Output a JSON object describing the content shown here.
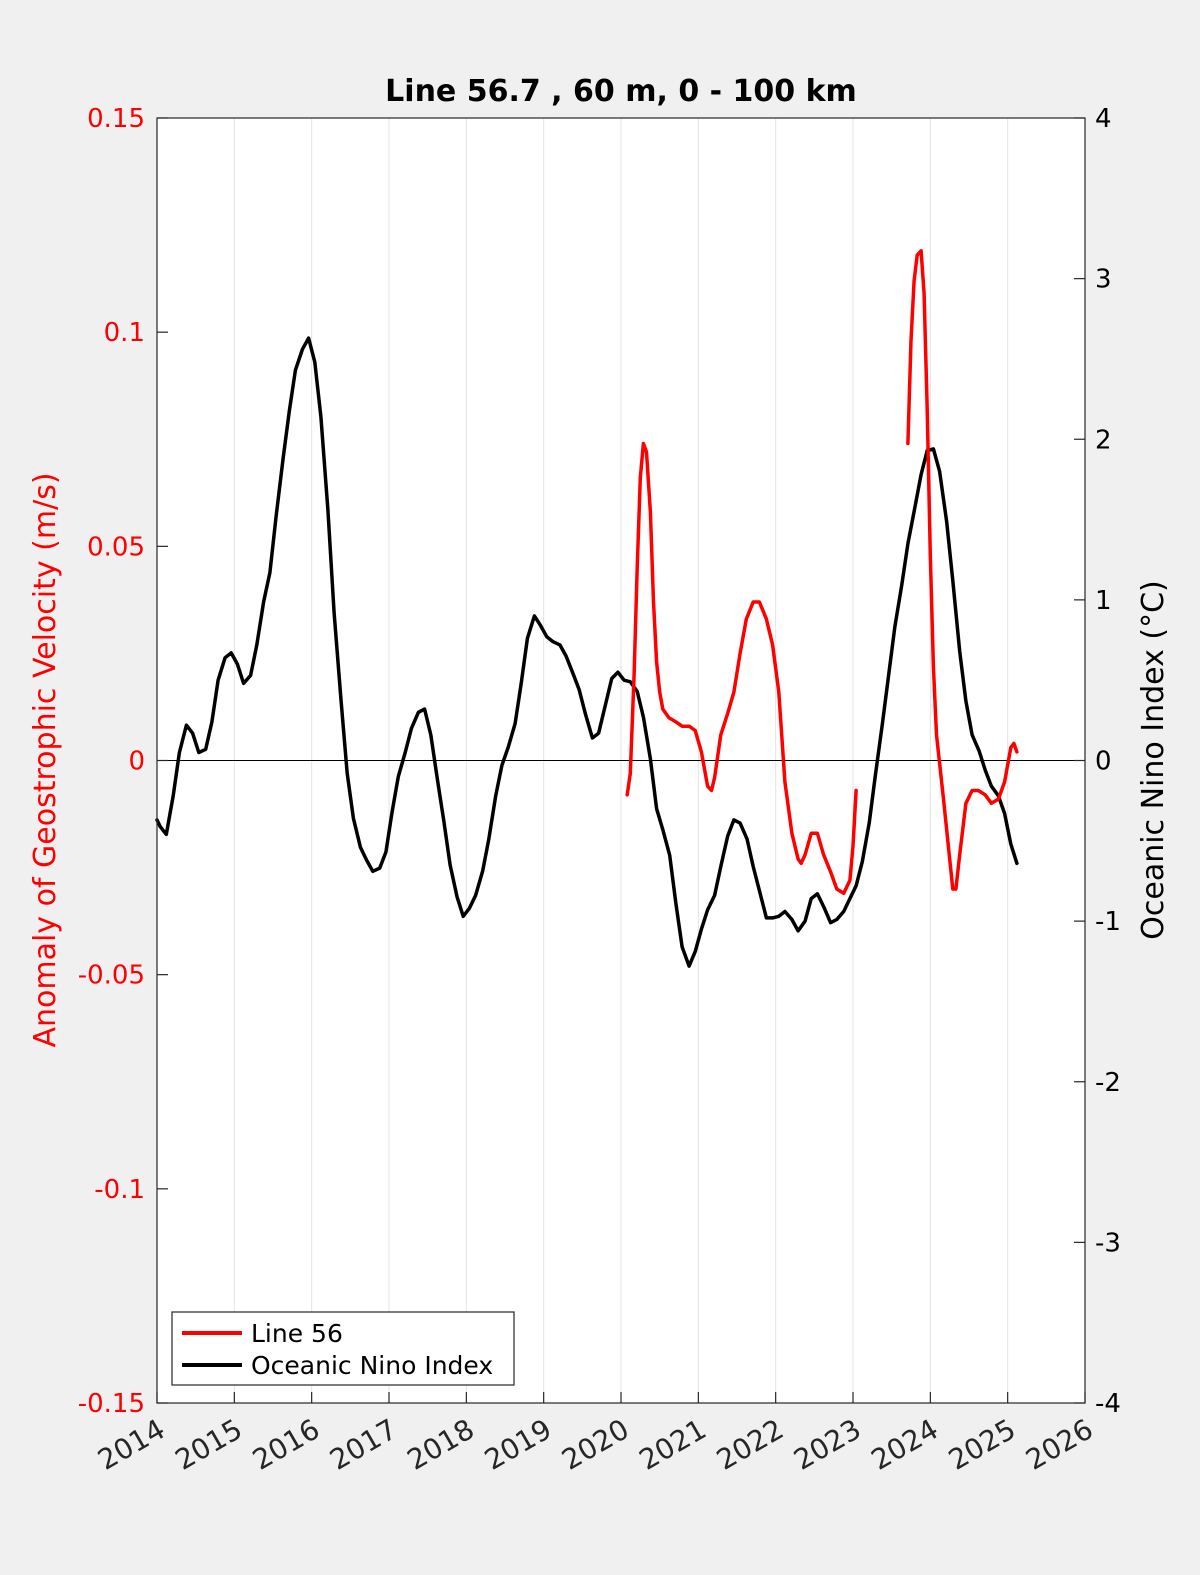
{
  "chart_data": {
    "type": "line",
    "title": "Line 56.7 , 60 m, 0 - 100 km",
    "xlabel": "",
    "xlim": [
      2014,
      2026
    ],
    "xticks": [
      "2014",
      "2015",
      "2016",
      "2017",
      "2018",
      "2019",
      "2020",
      "2021",
      "2022",
      "2023",
      "2024",
      "2025",
      "2026"
    ],
    "y_left": {
      "label": "Anomaly of Geostrophic Velocity (m/s)",
      "lim": [
        -0.15,
        0.15
      ],
      "ticks": [
        "0.15",
        "0.1",
        "0.05",
        "0",
        "-0.05",
        "-0.1",
        "-0.15"
      ],
      "color": "#ff0000"
    },
    "y_right": {
      "label": "Oceanic Nino Index (°C)",
      "lim": [
        -4,
        4
      ],
      "ticks": [
        "4",
        "3",
        "2",
        "1",
        "0",
        "-1",
        "-2",
        "-3",
        "-4"
      ],
      "color": "#000000"
    },
    "grid": "vertical",
    "legend": {
      "position": "bottom-left",
      "entries": [
        {
          "label": "Line 56",
          "color": "#ff0000"
        },
        {
          "label": "Oceanic Nino Index",
          "color": "#000000"
        }
      ]
    },
    "series": [
      {
        "name": "Line 56",
        "axis": "left",
        "color": "#ff0000",
        "segments": [
          [
            [
              2020.08,
              -0.008
            ],
            [
              2020.12,
              -0.003
            ],
            [
              2020.17,
              0.02
            ],
            [
              2020.21,
              0.045
            ],
            [
              2020.25,
              0.066
            ],
            [
              2020.29,
              0.074
            ],
            [
              2020.33,
              0.072
            ],
            [
              2020.38,
              0.058
            ],
            [
              2020.42,
              0.037
            ],
            [
              2020.46,
              0.023
            ],
            [
              2020.5,
              0.016
            ],
            [
              2020.54,
              0.012
            ],
            [
              2020.62,
              0.01
            ],
            [
              2020.71,
              0.009
            ],
            [
              2020.79,
              0.008
            ],
            [
              2020.88,
              0.008
            ],
            [
              2020.96,
              0.007
            ],
            [
              2021.04,
              0.002
            ],
            [
              2021.12,
              -0.006
            ],
            [
              2021.17,
              -0.007
            ],
            [
              2021.21,
              -0.004
            ],
            [
              2021.29,
              0.006
            ],
            [
              2021.38,
              0.011
            ],
            [
              2021.46,
              0.016
            ],
            [
              2021.54,
              0.025
            ],
            [
              2021.62,
              0.033
            ],
            [
              2021.71,
              0.037
            ],
            [
              2021.79,
              0.037
            ],
            [
              2021.88,
              0.033
            ],
            [
              2021.96,
              0.027
            ],
            [
              2022.04,
              0.016
            ],
            [
              2022.12,
              -0.005
            ],
            [
              2022.21,
              -0.017
            ],
            [
              2022.29,
              -0.023
            ],
            [
              2022.33,
              -0.024
            ],
            [
              2022.38,
              -0.022
            ],
            [
              2022.46,
              -0.017
            ],
            [
              2022.54,
              -0.017
            ],
            [
              2022.62,
              -0.022
            ],
            [
              2022.71,
              -0.026
            ],
            [
              2022.79,
              -0.03
            ],
            [
              2022.88,
              -0.031
            ],
            [
              2022.96,
              -0.028
            ],
            [
              2023.0,
              -0.02
            ],
            [
              2023.04,
              -0.007
            ]
          ],
          [
            [
              2023.71,
              0.074
            ],
            [
              2023.75,
              0.098
            ],
            [
              2023.79,
              0.112
            ],
            [
              2023.83,
              0.118
            ],
            [
              2023.88,
              0.119
            ],
            [
              2023.92,
              0.109
            ],
            [
              2023.96,
              0.082
            ],
            [
              2024.0,
              0.048
            ],
            [
              2024.04,
              0.022
            ],
            [
              2024.08,
              0.006
            ],
            [
              2024.17,
              -0.009
            ],
            [
              2024.25,
              -0.023
            ],
            [
              2024.29,
              -0.03
            ],
            [
              2024.33,
              -0.03
            ],
            [
              2024.38,
              -0.022
            ],
            [
              2024.46,
              -0.01
            ],
            [
              2024.54,
              -0.007
            ],
            [
              2024.62,
              -0.007
            ],
            [
              2024.71,
              -0.008
            ],
            [
              2024.79,
              -0.01
            ],
            [
              2024.88,
              -0.009
            ],
            [
              2024.96,
              -0.005
            ],
            [
              2025.04,
              0.003
            ],
            [
              2025.08,
              0.004
            ],
            [
              2025.12,
              0.002
            ]
          ]
        ]
      },
      {
        "name": "Oceanic Nino Index",
        "axis": "right",
        "color": "#000000",
        "segments": [
          [
            [
              2014.0,
              -0.37
            ],
            [
              2014.04,
              -0.41
            ],
            [
              2014.12,
              -0.46
            ],
            [
              2014.21,
              -0.22
            ],
            [
              2014.29,
              0.05
            ],
            [
              2014.38,
              0.22
            ],
            [
              2014.46,
              0.17
            ],
            [
              2014.54,
              0.05
            ],
            [
              2014.63,
              0.07
            ],
            [
              2014.71,
              0.24
            ],
            [
              2014.79,
              0.5
            ],
            [
              2014.88,
              0.64
            ],
            [
              2014.96,
              0.67
            ],
            [
              2015.04,
              0.6
            ],
            [
              2015.12,
              0.48
            ],
            [
              2015.21,
              0.53
            ],
            [
              2015.29,
              0.72
            ],
            [
              2015.38,
              0.99
            ],
            [
              2015.46,
              1.17
            ],
            [
              2015.54,
              1.52
            ],
            [
              2015.63,
              1.88
            ],
            [
              2015.71,
              2.17
            ],
            [
              2015.79,
              2.43
            ],
            [
              2015.88,
              2.56
            ],
            [
              2015.96,
              2.63
            ],
            [
              2016.04,
              2.48
            ],
            [
              2016.12,
              2.14
            ],
            [
              2016.21,
              1.56
            ],
            [
              2016.29,
              0.92
            ],
            [
              2016.38,
              0.37
            ],
            [
              2016.46,
              -0.08
            ],
            [
              2016.54,
              -0.36
            ],
            [
              2016.63,
              -0.54
            ],
            [
              2016.71,
              -0.62
            ],
            [
              2016.79,
              -0.69
            ],
            [
              2016.88,
              -0.67
            ],
            [
              2016.96,
              -0.57
            ],
            [
              2017.04,
              -0.32
            ],
            [
              2017.12,
              -0.1
            ],
            [
              2017.21,
              0.05
            ],
            [
              2017.29,
              0.2
            ],
            [
              2017.38,
              0.3
            ],
            [
              2017.46,
              0.32
            ],
            [
              2017.54,
              0.16
            ],
            [
              2017.63,
              -0.13
            ],
            [
              2017.71,
              -0.38
            ],
            [
              2017.79,
              -0.65
            ],
            [
              2017.88,
              -0.85
            ],
            [
              2017.96,
              -0.97
            ],
            [
              2018.04,
              -0.92
            ],
            [
              2018.12,
              -0.84
            ],
            [
              2018.21,
              -0.69
            ],
            [
              2018.29,
              -0.49
            ],
            [
              2018.38,
              -0.22
            ],
            [
              2018.46,
              -0.03
            ],
            [
              2018.54,
              0.08
            ],
            [
              2018.63,
              0.23
            ],
            [
              2018.71,
              0.48
            ],
            [
              2018.79,
              0.76
            ],
            [
              2018.88,
              0.9
            ],
            [
              2018.96,
              0.84
            ],
            [
              2019.04,
              0.77
            ],
            [
              2019.12,
              0.74
            ],
            [
              2019.21,
              0.72
            ],
            [
              2019.29,
              0.65
            ],
            [
              2019.38,
              0.54
            ],
            [
              2019.46,
              0.44
            ],
            [
              2019.54,
              0.29
            ],
            [
              2019.63,
              0.14
            ],
            [
              2019.71,
              0.17
            ],
            [
              2019.79,
              0.33
            ],
            [
              2019.88,
              0.51
            ],
            [
              2019.96,
              0.55
            ],
            [
              2020.04,
              0.5
            ],
            [
              2020.12,
              0.49
            ],
            [
              2020.21,
              0.43
            ],
            [
              2020.29,
              0.27
            ],
            [
              2020.38,
              0.01
            ],
            [
              2020.46,
              -0.3
            ],
            [
              2020.54,
              -0.43
            ],
            [
              2020.63,
              -0.59
            ],
            [
              2020.71,
              -0.89
            ],
            [
              2020.79,
              -1.16
            ],
            [
              2020.88,
              -1.28
            ],
            [
              2020.96,
              -1.19
            ],
            [
              2021.04,
              -1.05
            ],
            [
              2021.12,
              -0.93
            ],
            [
              2021.21,
              -0.84
            ],
            [
              2021.29,
              -0.66
            ],
            [
              2021.38,
              -0.47
            ],
            [
              2021.46,
              -0.37
            ],
            [
              2021.54,
              -0.39
            ],
            [
              2021.63,
              -0.49
            ],
            [
              2021.71,
              -0.66
            ],
            [
              2021.79,
              -0.81
            ],
            [
              2021.88,
              -0.98
            ],
            [
              2021.96,
              -0.98
            ],
            [
              2022.04,
              -0.97
            ],
            [
              2022.12,
              -0.94
            ],
            [
              2022.21,
              -0.99
            ],
            [
              2022.29,
              -1.06
            ],
            [
              2022.38,
              -1.0
            ],
            [
              2022.46,
              -0.86
            ],
            [
              2022.54,
              -0.83
            ],
            [
              2022.63,
              -0.92
            ],
            [
              2022.71,
              -1.01
            ],
            [
              2022.79,
              -0.99
            ],
            [
              2022.88,
              -0.94
            ],
            [
              2022.96,
              -0.86
            ],
            [
              2023.04,
              -0.78
            ],
            [
              2023.12,
              -0.63
            ],
            [
              2023.21,
              -0.39
            ],
            [
              2023.29,
              -0.09
            ],
            [
              2023.38,
              0.23
            ],
            [
              2023.46,
              0.53
            ],
            [
              2023.54,
              0.83
            ],
            [
              2023.63,
              1.09
            ],
            [
              2023.71,
              1.35
            ],
            [
              2023.79,
              1.55
            ],
            [
              2023.88,
              1.78
            ],
            [
              2023.96,
              1.93
            ],
            [
              2024.04,
              1.94
            ],
            [
              2024.12,
              1.8
            ],
            [
              2024.21,
              1.49
            ],
            [
              2024.29,
              1.12
            ],
            [
              2024.38,
              0.68
            ],
            [
              2024.46,
              0.37
            ],
            [
              2024.54,
              0.16
            ],
            [
              2024.63,
              0.06
            ],
            [
              2024.71,
              -0.06
            ],
            [
              2024.79,
              -0.16
            ],
            [
              2024.88,
              -0.22
            ],
            [
              2024.96,
              -0.33
            ],
            [
              2025.04,
              -0.52
            ],
            [
              2025.12,
              -0.64
            ]
          ]
        ]
      }
    ]
  }
}
